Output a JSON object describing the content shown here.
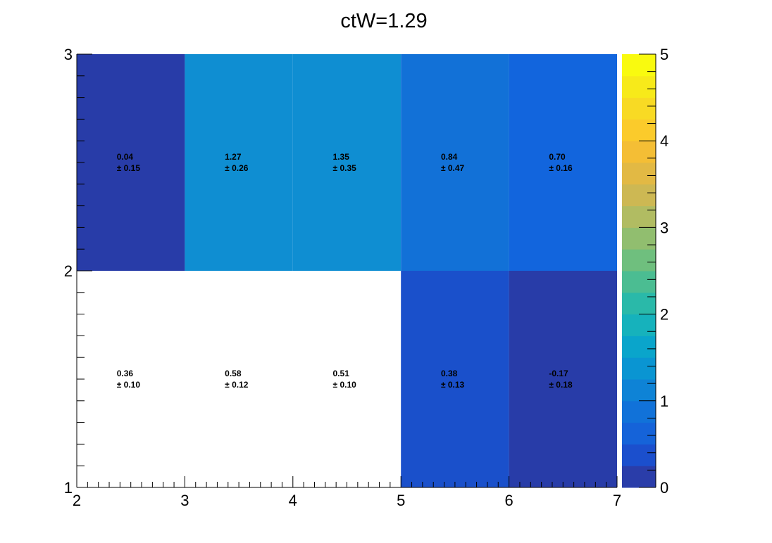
{
  "chart_data": {
    "type": "heatmap",
    "title": "ctW=1.29",
    "xlim": [
      2,
      7
    ],
    "ylim": [
      1,
      3
    ],
    "x_edges": [
      2,
      3,
      4,
      5,
      6,
      7
    ],
    "y_edges": [
      1,
      2,
      3
    ],
    "x_ticks": [
      "2",
      "3",
      "4",
      "5",
      "6",
      "7"
    ],
    "y_ticks": [
      "1",
      "2",
      "3"
    ],
    "z_range": [
      0,
      5
    ],
    "z_ticks": [
      "0",
      "1",
      "2",
      "3",
      "4",
      "5"
    ],
    "z_colors": [
      "#2a3da9",
      "#1b4fcd",
      "#1563d9",
      "#1172d9",
      "#0e83d6",
      "#0a95d2",
      "#0aa5cb",
      "#16b2bc",
      "#2ab9a9",
      "#4bbd92",
      "#6fbf7e",
      "#91be6f",
      "#b1bc62",
      "#cdb853",
      "#e2b944",
      "#f4be35",
      "#fbcb2b",
      "#f8da24",
      "#f7ea1a",
      "#f9fa0f"
    ],
    "cells": [
      {
        "x": 2,
        "y": 2,
        "value": "0.04",
        "error": "0.15",
        "color": "#283ca8"
      },
      {
        "x": 3,
        "y": 2,
        "value": "1.27",
        "error": "0.26",
        "color": "#0f8ed2"
      },
      {
        "x": 4,
        "y": 2,
        "value": "1.35",
        "error": "0.35",
        "color": "#0f8ed2"
      },
      {
        "x": 5,
        "y": 2,
        "value": "0.84",
        "error": "0.47",
        "color": "#1271d7"
      },
      {
        "x": 6,
        "y": 2,
        "value": "0.70",
        "error": "0.16",
        "color": "#1265dd"
      },
      {
        "x": 2,
        "y": 1,
        "value": "0.36",
        "error": "0.10",
        "color": "#ffffff"
      },
      {
        "x": 3,
        "y": 1,
        "value": "0.58",
        "error": "0.12",
        "color": "#ffffff"
      },
      {
        "x": 4,
        "y": 1,
        "value": "0.51",
        "error": "0.10",
        "color": "#ffffff"
      },
      {
        "x": 5,
        "y": 1,
        "value": "0.38",
        "error": "0.13",
        "color": "#1a50cb"
      },
      {
        "x": 6,
        "y": 1,
        "value": "-0.17",
        "error": "0.18",
        "color": "#283ca8"
      }
    ]
  }
}
